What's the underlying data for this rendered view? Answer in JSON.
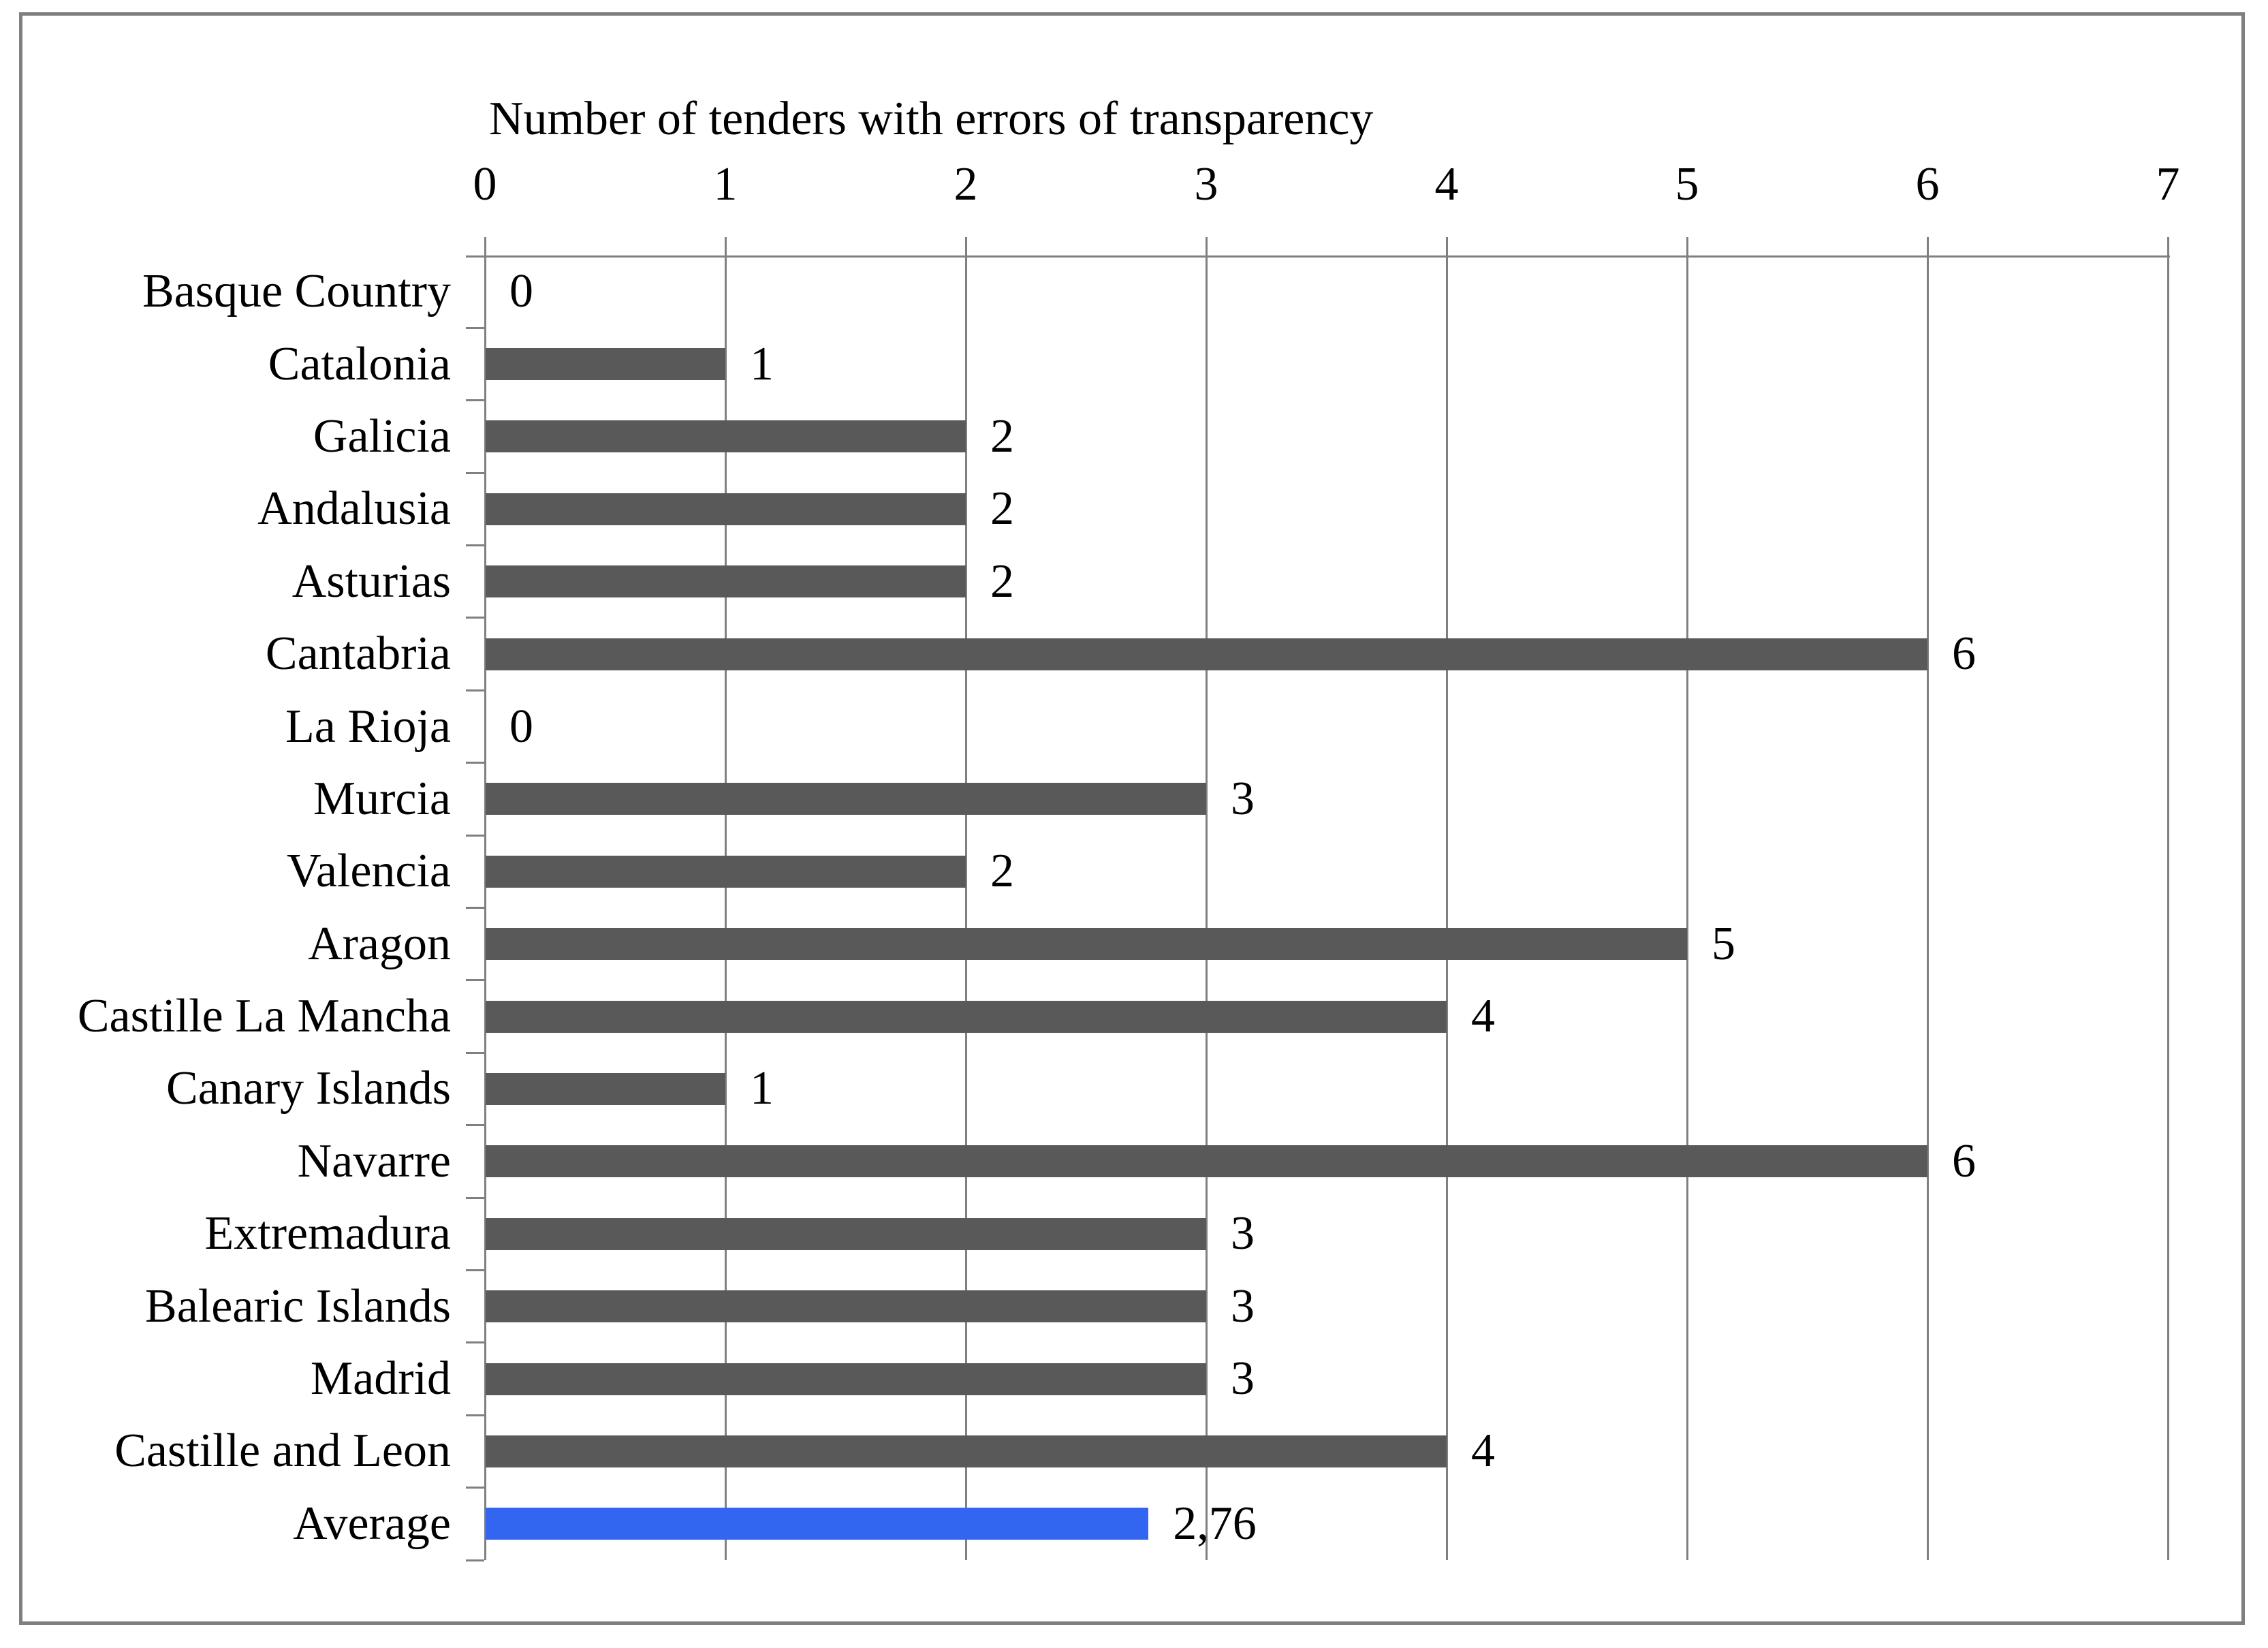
{
  "chart_data": {
    "type": "bar",
    "orientation": "horizontal",
    "title": "Number of tenders with errors of transparency",
    "categories": [
      "Basque Country",
      "Catalonia",
      "Galicia",
      "Andalusia",
      "Asturias",
      "Cantabria",
      "La Rioja",
      "Murcia",
      "Valencia",
      "Aragon",
      "Castille La Mancha",
      "Canary Islands",
      "Navarre",
      "Extremadura",
      "Balearic Islands",
      "Madrid",
      "Castille and Leon",
      "Average"
    ],
    "values": [
      0,
      1,
      2,
      2,
      2,
      6,
      0,
      3,
      2,
      5,
      4,
      1,
      6,
      3,
      3,
      3,
      4,
      2.76
    ],
    "value_labels": [
      "0",
      "1",
      "2",
      "2",
      "2",
      "6",
      "0",
      "3",
      "2",
      "5",
      "4",
      "1",
      "6",
      "3",
      "3",
      "3",
      "4",
      "2,76"
    ],
    "x_ticks": [
      "0",
      "1",
      "2",
      "3",
      "4",
      "5",
      "6",
      "7"
    ],
    "xlim": [
      0,
      7
    ],
    "xlabel": "",
    "ylabel": "",
    "legend": "none",
    "grid": "vertical",
    "bar_color": "#595959",
    "highlight_color": "#3366F0",
    "highlight_index": 17,
    "grid_color": "#808080",
    "text_color": "#000000",
    "background_color": "#ffffff",
    "border_color": "#7f7f7f"
  }
}
